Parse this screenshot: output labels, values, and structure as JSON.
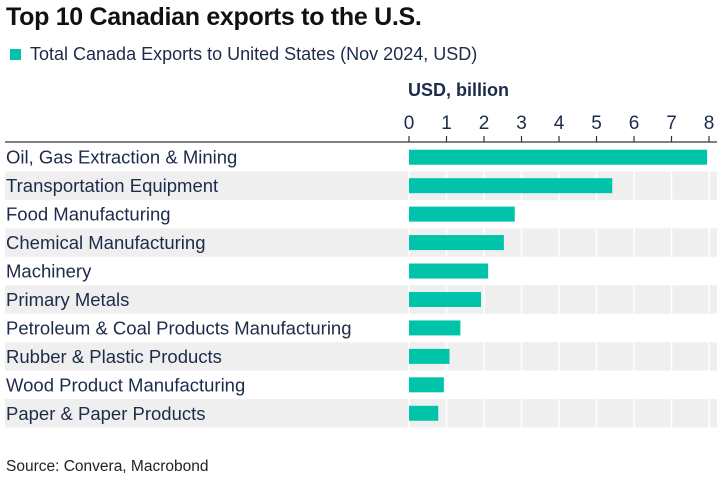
{
  "title": "Top 10 Canadian exports to the U.S.",
  "source": "Source: Convera, Macrobond",
  "colors": {
    "bar": "#00c4aa",
    "band": "#efefef",
    "text": "#1c2b4a",
    "axis": "#808080"
  },
  "chart_data": {
    "type": "bar",
    "orientation": "horizontal",
    "title": "Top 10 Canadian exports to the U.S.",
    "xlabel": "USD, billion",
    "ylabel": "",
    "xlim": [
      0,
      8
    ],
    "x_ticks": [
      "0",
      "1",
      "2",
      "3",
      "4",
      "5",
      "6",
      "7",
      "8"
    ],
    "axis_position": "top",
    "grid": true,
    "legend_position": "top-left",
    "categories": [
      "Oil, Gas Extraction & Mining",
      "Transportation Equipment",
      "Food Manufacturing",
      "Chemical Manufacturing",
      "Machinery",
      "Primary Metals",
      "Petroleum & Coal Products Manufacturing",
      "Rubber & Plastic Products",
      "Wood Product Manufacturing",
      "Paper & Paper Products"
    ],
    "series": [
      {
        "name": "Total Canada Exports to United States (Nov 2024, USD)",
        "values": [
          7.95,
          5.42,
          2.82,
          2.53,
          2.11,
          1.92,
          1.37,
          1.08,
          0.93,
          0.78
        ]
      }
    ]
  }
}
